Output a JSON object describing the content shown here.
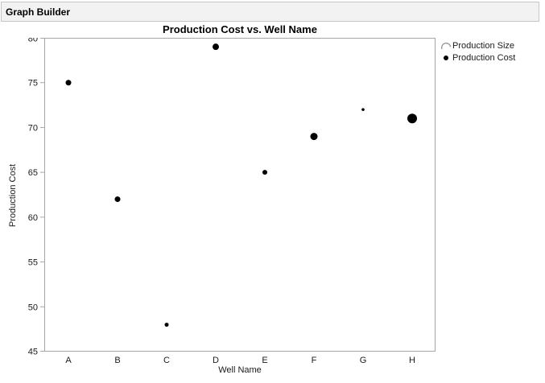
{
  "window": {
    "title": "Graph Builder"
  },
  "legend": {
    "items": [
      {
        "icon": "size-legend-arc-icon",
        "label": "Production Size"
      },
      {
        "icon": "dot-marker-icon",
        "label": "Production Cost"
      }
    ]
  },
  "colors": {
    "marker": "#000000",
    "axis_line": "#a6a6a6",
    "tick_text": "#1a1a1a",
    "header_bg": "#f2f2f2",
    "header_border": "#c6c6c6",
    "legend_arc": "#8c8c8c",
    "plot_bg": "#ffffff"
  },
  "chart_data": {
    "type": "scatter",
    "title": "Production Cost vs. Well Name",
    "xlabel": "Well Name",
    "ylabel": "Production Cost",
    "categories": [
      "A",
      "B",
      "C",
      "D",
      "E",
      "F",
      "G",
      "H"
    ],
    "series": [
      {
        "name": "Production Cost",
        "values": [
          75,
          62,
          48,
          79,
          65,
          69,
          72,
          71
        ]
      }
    ],
    "size_variable": "Production Size",
    "marker_radii_px": [
      3.5,
      3.5,
      2.5,
      4,
      3,
      4.5,
      1.8,
      6
    ],
    "ylim": [
      45,
      80
    ],
    "yticks": [
      45,
      50,
      55,
      60,
      65,
      70,
      75,
      80
    ],
    "grid": false,
    "legend_position": "right",
    "marker_color": "#000000"
  }
}
